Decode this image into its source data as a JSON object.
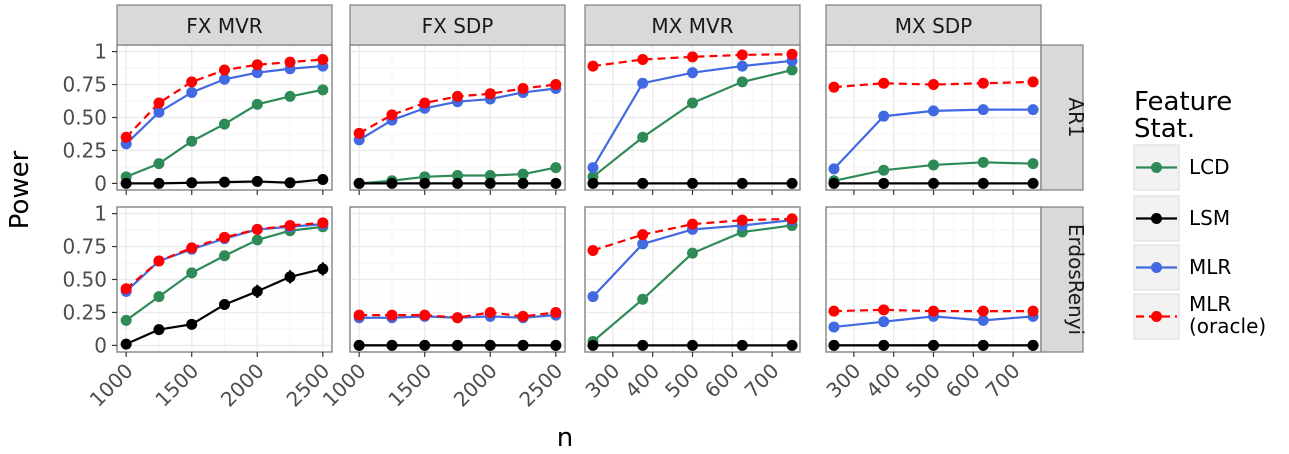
{
  "chart_data": {
    "type": "line",
    "xlabel": "n",
    "ylabel": "Power",
    "legend": {
      "title": "Feature\nStat.",
      "placement": "right",
      "entries": [
        {
          "name": "LCD",
          "color": "#2e8b57",
          "dashed": false
        },
        {
          "name": "LSM",
          "color": "#000000",
          "dashed": false
        },
        {
          "name": "MLR",
          "color": "#4169e1",
          "dashed": false
        },
        {
          "name": "MLR\n(oracle)",
          "color": "#ff0000",
          "dashed": true
        }
      ]
    },
    "columns": [
      {
        "label": "FX MVR",
        "xlim": [
          930,
          2570
        ],
        "xticks": [
          1000,
          1500,
          2000,
          2500
        ],
        "x": [
          1000,
          1250,
          1500,
          1750,
          2000,
          2250,
          2500
        ]
      },
      {
        "label": "FX SDP",
        "xlim": [
          930,
          2570
        ],
        "xticks": [
          1000,
          1500,
          2000,
          2500
        ],
        "x": [
          1000,
          1250,
          1500,
          1750,
          2000,
          2250,
          2500
        ]
      },
      {
        "label": "MX MVR",
        "xlim": [
          230,
          770
        ],
        "xticks": [
          300,
          400,
          500,
          600,
          700
        ],
        "x": [
          250,
          375,
          500,
          625,
          750
        ]
      },
      {
        "label": "MX SDP",
        "xlim": [
          230,
          770
        ],
        "xticks": [
          300,
          400,
          500,
          600,
          700
        ],
        "x": [
          250,
          375,
          500,
          625,
          750
        ]
      }
    ],
    "rows": [
      {
        "label": "AR1"
      },
      {
        "label": "ErdosRenyi"
      }
    ],
    "yticks": [
      0,
      0.25,
      0.5,
      0.75,
      1
    ],
    "ytick_labels": [
      "0",
      "0.25",
      "0.50",
      "0.75",
      "1"
    ],
    "ylim": [
      -0.05,
      1.05
    ],
    "grid": true,
    "panels": [
      {
        "row": 0,
        "col": 0,
        "series": [
          {
            "name": "LCD",
            "values": [
              0.05,
              0.15,
              0.32,
              0.45,
              0.6,
              0.66,
              0.71
            ],
            "err": [
              0.01,
              0.02,
              0.03,
              0.03,
              0.03,
              0.02,
              0.02
            ]
          },
          {
            "name": "LSM",
            "values": [
              0.0,
              0.0,
              0.005,
              0.01,
              0.015,
              0.005,
              0.03
            ],
            "err": [
              0,
              0,
              0,
              0,
              0,
              0,
              0.005
            ]
          },
          {
            "name": "MLR",
            "values": [
              0.3,
              0.54,
              0.69,
              0.79,
              0.84,
              0.87,
              0.89
            ],
            "err": [
              0,
              0,
              0,
              0,
              0,
              0,
              0
            ]
          },
          {
            "name": "MLR\n(oracle)",
            "values": [
              0.35,
              0.61,
              0.77,
              0.86,
              0.9,
              0.92,
              0.94
            ],
            "err": [
              0,
              0,
              0,
              0,
              0,
              0,
              0
            ]
          }
        ]
      },
      {
        "row": 0,
        "col": 1,
        "series": [
          {
            "name": "LCD",
            "values": [
              0.0,
              0.02,
              0.05,
              0.06,
              0.06,
              0.07,
              0.12
            ],
            "err": [
              0,
              0,
              0,
              0,
              0,
              0,
              0.01
            ]
          },
          {
            "name": "LSM",
            "values": [
              0.0,
              0.0,
              0.0,
              0.0,
              0.0,
              0.0,
              0.0
            ],
            "err": [
              0,
              0,
              0,
              0,
              0,
              0,
              0
            ]
          },
          {
            "name": "MLR",
            "values": [
              0.33,
              0.48,
              0.57,
              0.62,
              0.64,
              0.69,
              0.72
            ],
            "err": [
              0,
              0,
              0,
              0,
              0,
              0,
              0
            ]
          },
          {
            "name": "MLR\n(oracle)",
            "values": [
              0.38,
              0.52,
              0.61,
              0.66,
              0.68,
              0.72,
              0.75
            ],
            "err": [
              0,
              0,
              0,
              0,
              0,
              0,
              0
            ]
          }
        ]
      },
      {
        "row": 0,
        "col": 2,
        "series": [
          {
            "name": "LCD",
            "values": [
              0.05,
              0.35,
              0.61,
              0.77,
              0.86
            ],
            "err": [
              0,
              0.03,
              0.03,
              0.02,
              0.02
            ]
          },
          {
            "name": "LSM",
            "values": [
              0.0,
              0.0,
              0.0,
              0.0,
              0.0
            ],
            "err": [
              0,
              0,
              0,
              0,
              0
            ]
          },
          {
            "name": "MLR",
            "values": [
              0.12,
              0.76,
              0.84,
              0.89,
              0.93
            ],
            "err": [
              0,
              0,
              0,
              0,
              0
            ]
          },
          {
            "name": "MLR\n(oracle)",
            "values": [
              0.89,
              0.94,
              0.96,
              0.975,
              0.98
            ],
            "err": [
              0,
              0,
              0,
              0,
              0
            ]
          }
        ]
      },
      {
        "row": 0,
        "col": 3,
        "series": [
          {
            "name": "LCD",
            "values": [
              0.02,
              0.1,
              0.14,
              0.16,
              0.15
            ],
            "err": [
              0,
              0,
              0,
              0,
              0
            ]
          },
          {
            "name": "LSM",
            "values": [
              0.0,
              0.0,
              0.0,
              0.0,
              0.0
            ],
            "err": [
              0,
              0,
              0,
              0,
              0
            ]
          },
          {
            "name": "MLR",
            "values": [
              0.11,
              0.51,
              0.55,
              0.56,
              0.56
            ],
            "err": [
              0,
              0,
              0,
              0,
              0
            ]
          },
          {
            "name": "MLR\n(oracle)",
            "values": [
              0.73,
              0.76,
              0.75,
              0.76,
              0.77
            ],
            "err": [
              0,
              0,
              0,
              0,
              0
            ]
          }
        ]
      },
      {
        "row": 1,
        "col": 0,
        "series": [
          {
            "name": "LCD",
            "values": [
              0.19,
              0.37,
              0.55,
              0.68,
              0.8,
              0.87,
              0.9
            ],
            "err": [
              0.03,
              0.04,
              0.04,
              0.03,
              0.03,
              0.02,
              0.02
            ]
          },
          {
            "name": "LSM",
            "values": [
              0.01,
              0.12,
              0.16,
              0.31,
              0.41,
              0.52,
              0.58
            ],
            "err": [
              0.01,
              0.02,
              0.03,
              0.04,
              0.05,
              0.05,
              0.05
            ]
          },
          {
            "name": "MLR",
            "values": [
              0.41,
              0.64,
              0.73,
              0.81,
              0.88,
              0.9,
              0.92
            ],
            "err": [
              0,
              0,
              0,
              0,
              0,
              0,
              0
            ]
          },
          {
            "name": "MLR\n(oracle)",
            "values": [
              0.43,
              0.64,
              0.74,
              0.82,
              0.88,
              0.91,
              0.93
            ],
            "err": [
              0,
              0,
              0,
              0,
              0,
              0,
              0
            ]
          }
        ]
      },
      {
        "row": 1,
        "col": 1,
        "series": [
          {
            "name": "LCD",
            "values": [
              0.0,
              0.0,
              0.0,
              0.0,
              0.0,
              0.0,
              0.0
            ],
            "err": [
              0,
              0,
              0,
              0,
              0,
              0,
              0
            ]
          },
          {
            "name": "LSM",
            "values": [
              0.0,
              0.0,
              0.0,
              0.0,
              0.0,
              0.0,
              0.0
            ],
            "err": [
              0,
              0,
              0,
              0,
              0,
              0,
              0
            ]
          },
          {
            "name": "MLR",
            "values": [
              0.21,
              0.21,
              0.22,
              0.21,
              0.22,
              0.21,
              0.23
            ],
            "err": [
              0,
              0,
              0,
              0,
              0,
              0,
              0
            ]
          },
          {
            "name": "MLR\n(oracle)",
            "values": [
              0.23,
              0.23,
              0.23,
              0.21,
              0.25,
              0.22,
              0.25
            ],
            "err": [
              0,
              0,
              0,
              0,
              0,
              0,
              0
            ]
          }
        ]
      },
      {
        "row": 1,
        "col": 2,
        "series": [
          {
            "name": "LCD",
            "values": [
              0.03,
              0.35,
              0.7,
              0.86,
              0.91
            ],
            "err": [
              0.01,
              0.04,
              0.03,
              0.02,
              0.02
            ]
          },
          {
            "name": "LSM",
            "values": [
              0.0,
              0.0,
              0.0,
              0.0,
              0.0
            ],
            "err": [
              0,
              0,
              0,
              0,
              0
            ]
          },
          {
            "name": "MLR",
            "values": [
              0.37,
              0.77,
              0.88,
              0.91,
              0.95
            ],
            "err": [
              0,
              0,
              0,
              0,
              0
            ]
          },
          {
            "name": "MLR\n(oracle)",
            "values": [
              0.72,
              0.84,
              0.92,
              0.95,
              0.96
            ],
            "err": [
              0,
              0,
              0,
              0,
              0
            ]
          }
        ]
      },
      {
        "row": 1,
        "col": 3,
        "series": [
          {
            "name": "LCD",
            "values": [
              0.0,
              0.0,
              0.0,
              0.0,
              0.0
            ],
            "err": [
              0,
              0,
              0,
              0,
              0
            ]
          },
          {
            "name": "LSM",
            "values": [
              0.0,
              0.0,
              0.0,
              0.0,
              0.0
            ],
            "err": [
              0,
              0,
              0,
              0,
              0
            ]
          },
          {
            "name": "MLR",
            "values": [
              0.14,
              0.18,
              0.22,
              0.19,
              0.22
            ],
            "err": [
              0,
              0,
              0,
              0,
              0
            ]
          },
          {
            "name": "MLR\n(oracle)",
            "values": [
              0.26,
              0.27,
              0.26,
              0.26,
              0.26
            ],
            "err": [
              0,
              0,
              0,
              0,
              0
            ]
          }
        ]
      }
    ]
  }
}
